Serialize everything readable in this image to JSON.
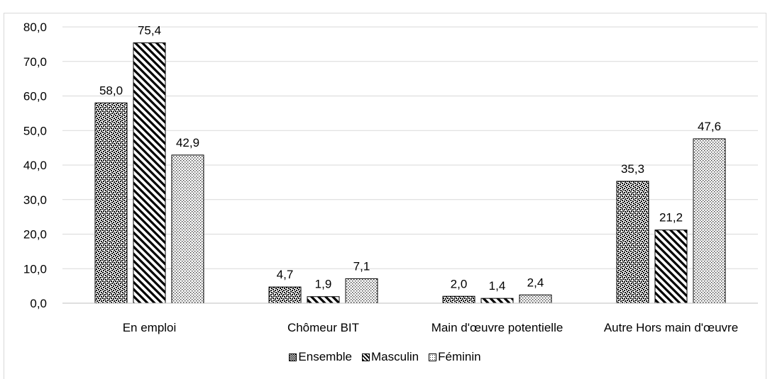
{
  "chart_data": {
    "type": "bar",
    "title": "",
    "xlabel": "",
    "ylabel": "",
    "ylim": [
      0,
      80
    ],
    "yticks": [
      "0,0",
      "10,0",
      "20,0",
      "30,0",
      "40,0",
      "50,0",
      "60,0",
      "70,0",
      "80,0"
    ],
    "categories": [
      "En emploi",
      "Chômeur BIT",
      "Main d'œuvre potentielle",
      "Autre Hors main d'œuvre"
    ],
    "series": [
      {
        "name": "Ensemble",
        "values": [
          58.0,
          4.7,
          2.0,
          35.3
        ],
        "labels": [
          "58,0",
          "4,7",
          "2,0",
          "35,3"
        ],
        "pattern": "checker"
      },
      {
        "name": "Masculin",
        "values": [
          75.4,
          1.9,
          1.4,
          21.2
        ],
        "labels": [
          "75,4",
          "1,9",
          "1,4",
          "21,2"
        ],
        "pattern": "diagonal"
      },
      {
        "name": "Féminin",
        "values": [
          42.9,
          7.1,
          2.4,
          47.6
        ],
        "labels": [
          "42,9",
          "7,1",
          "2,4",
          "47,6"
        ],
        "pattern": "dots"
      }
    ],
    "grid": true,
    "legend": "bottom"
  }
}
